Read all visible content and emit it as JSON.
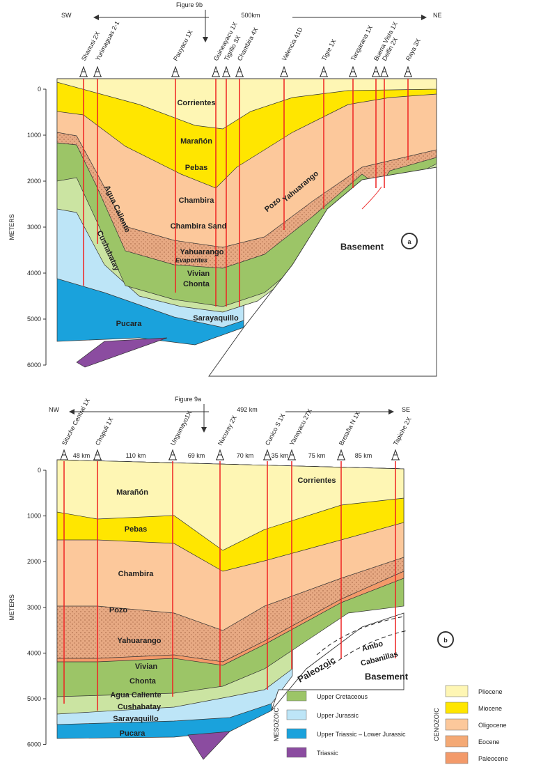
{
  "panel_a": {
    "figure_ref": "Figure 9b",
    "left_dir": "SW",
    "right_dir": "NE",
    "distance": "500km",
    "wells": [
      "Shanusi 2X",
      "Yurimaguas 2-1",
      "Pauyacu 1X",
      "Guineayacu 1X",
      "Tigrillo 3X",
      "Chambira 4X",
      "Valencia 41D",
      "Tigre 1X",
      "Tangarana 1X",
      "Buena Vista 1X",
      "Delfin 2X",
      "Raya 3X"
    ],
    "depth_label": "METERS",
    "depth_ticks": [
      0,
      1000,
      2000,
      3000,
      4000,
      5000,
      6000
    ],
    "formations": [
      "Corrientes",
      "Marañón",
      "Pebas",
      "Chambira",
      "Chambira Sand",
      "Yahuarango",
      "Evaporites",
      "Vivian",
      "Chonta",
      "Sarayaquillo",
      "Pucara",
      "Agua Caliente",
      "Cushabatay",
      "Pozo",
      "Yahuarango",
      "Basement"
    ],
    "panel_label": "a"
  },
  "panel_b": {
    "figure_ref": "Figure 9a",
    "left_dir": "NW",
    "right_dir": "SE",
    "distance": "492 km",
    "wells": [
      "Situche Central 1X",
      "Chapuli 1X",
      "Ungumayo1X",
      "Nucuray 2X",
      "Cunico S 1X",
      "Yanayacu 27X",
      "Bretaña N 1X",
      "Tapiche 2X"
    ],
    "spacings": [
      "48 km",
      "110 km",
      "69 km",
      "70 km",
      "35 km",
      "75 km",
      "85 km"
    ],
    "depth_label": "METERS",
    "depth_ticks": [
      0,
      1000,
      2000,
      3000,
      4000,
      5000,
      6000
    ],
    "formations": [
      "Marañón",
      "Corrientes",
      "Pebas",
      "Chambira",
      "Pozo",
      "Yahuarango",
      "Vivian",
      "Chonta",
      "Agua Caliente",
      "Cushabatay",
      "Sarayaquillo",
      "Pucara",
      "Paleozoic",
      "Ambo",
      "Cabanillas",
      "Basement"
    ],
    "panel_label": "b"
  },
  "legend": {
    "mesozoic_label": "MESOZOIC",
    "mesozoic": [
      "Upper Cretaceous",
      "Upper Jurassic",
      "Upper Triassic – Lower Jurassic",
      "Triassic"
    ],
    "cenozoic_label": "CENOZOIC",
    "cenozoic": [
      "Pliocene",
      "Miocene",
      "Oligocene",
      "Eocene",
      "Paleocene"
    ]
  }
}
